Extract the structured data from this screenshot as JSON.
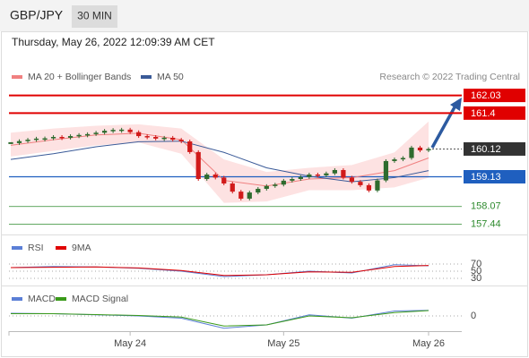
{
  "header": {
    "symbol": "GBP/JPY",
    "interval": "30 MIN",
    "timestamp": "Thursday, May 26, 2022 12:09:39 AM CET"
  },
  "chart_data": {
    "type": "candlestick",
    "credit": "Research © 2022 Trading Central",
    "xlim": [
      0,
      49
    ],
    "xticks": [
      {
        "value": 14,
        "label": "May 24"
      },
      {
        "value": 32,
        "label": "May 25"
      },
      {
        "value": 49,
        "label": "May 26"
      }
    ],
    "ylim": [
      157.2,
      162.4
    ],
    "closes": [
      160.33,
      160.4,
      160.45,
      160.49,
      160.5,
      160.55,
      160.52,
      160.58,
      160.62,
      160.65,
      160.7,
      160.77,
      160.8,
      160.81,
      160.72,
      160.58,
      160.55,
      160.49,
      160.52,
      160.45,
      160.39,
      160.01,
      159.05,
      159.21,
      159.1,
      158.89,
      158.6,
      158.35,
      158.57,
      158.7,
      158.8,
      158.85,
      158.99,
      159.05,
      159.12,
      159.21,
      159.18,
      159.25,
      159.37,
      159.1,
      158.95,
      158.83,
      158.64,
      159.0,
      159.69,
      159.75,
      159.8,
      160.17,
      160.07,
      160.12
    ],
    "up_color": "#2e6b2e",
    "down_color": "#d11a1a",
    "indicator_x": [
      0,
      5,
      10,
      15,
      20,
      25,
      30,
      35,
      40,
      45,
      49
    ],
    "series": [
      {
        "name": "MA 20 + Bollinger Bands",
        "color": "#f08080",
        "values": [
          160.25,
          160.45,
          160.62,
          160.68,
          160.45,
          159.0,
          158.8,
          159.05,
          159.1,
          159.35,
          159.8
        ],
        "band_upper": [
          160.7,
          160.85,
          160.95,
          161.0,
          160.85,
          159.75,
          159.3,
          159.45,
          159.55,
          160.0,
          161.1
        ],
        "band_lower": [
          159.85,
          160.05,
          160.25,
          160.35,
          159.95,
          158.2,
          158.25,
          158.65,
          158.65,
          158.75,
          159.1
        ],
        "band_color": "#fde2e2"
      },
      {
        "name": "MA 50",
        "color": "#3a5a98",
        "values": [
          159.75,
          159.95,
          160.2,
          160.38,
          160.4,
          160.0,
          159.45,
          159.15,
          158.95,
          159.1,
          159.35
        ]
      }
    ],
    "levels": [
      {
        "value": 162.03,
        "color": "#e00000",
        "style": "box"
      },
      {
        "value": 161.4,
        "color": "#e00000",
        "style": "box"
      },
      {
        "value": 160.12,
        "color": "#333333",
        "style": "current"
      },
      {
        "value": 159.13,
        "color": "#1f5fbf",
        "style": "box"
      },
      {
        "value": 158.07,
        "color": "#2e8b2e",
        "style": "text"
      },
      {
        "value": 157.44,
        "color": "#2e8b2e",
        "style": "text"
      }
    ],
    "rsi": {
      "ylim": [
        10,
        95
      ],
      "yticks": [
        70,
        50,
        30
      ],
      "series": [
        {
          "name": "RSI",
          "color": "#5b7fd6",
          "values": [
            60,
            63,
            62,
            58,
            50,
            35,
            40,
            50,
            45,
            68,
            65
          ]
        },
        {
          "name": "9MA",
          "color": "#e00000",
          "values": [
            60,
            61,
            62,
            59,
            52,
            38,
            40,
            48,
            47,
            63,
            66
          ]
        }
      ]
    },
    "macd": {
      "ylim": [
        -0.7,
        0.65
      ],
      "yticks": [
        0
      ],
      "series": [
        {
          "name": "MACD",
          "color": "#5b7fd6",
          "values": [
            0.12,
            0.1,
            0.05,
            0.0,
            -0.1,
            -0.55,
            -0.4,
            0.05,
            -0.1,
            0.22,
            0.25
          ]
        },
        {
          "name": "MACD Signal",
          "color": "#3a9a1a",
          "values": [
            0.1,
            0.1,
            0.06,
            0.02,
            -0.05,
            -0.45,
            -0.4,
            0.0,
            -0.08,
            0.15,
            0.24
          ]
        }
      ]
    }
  }
}
